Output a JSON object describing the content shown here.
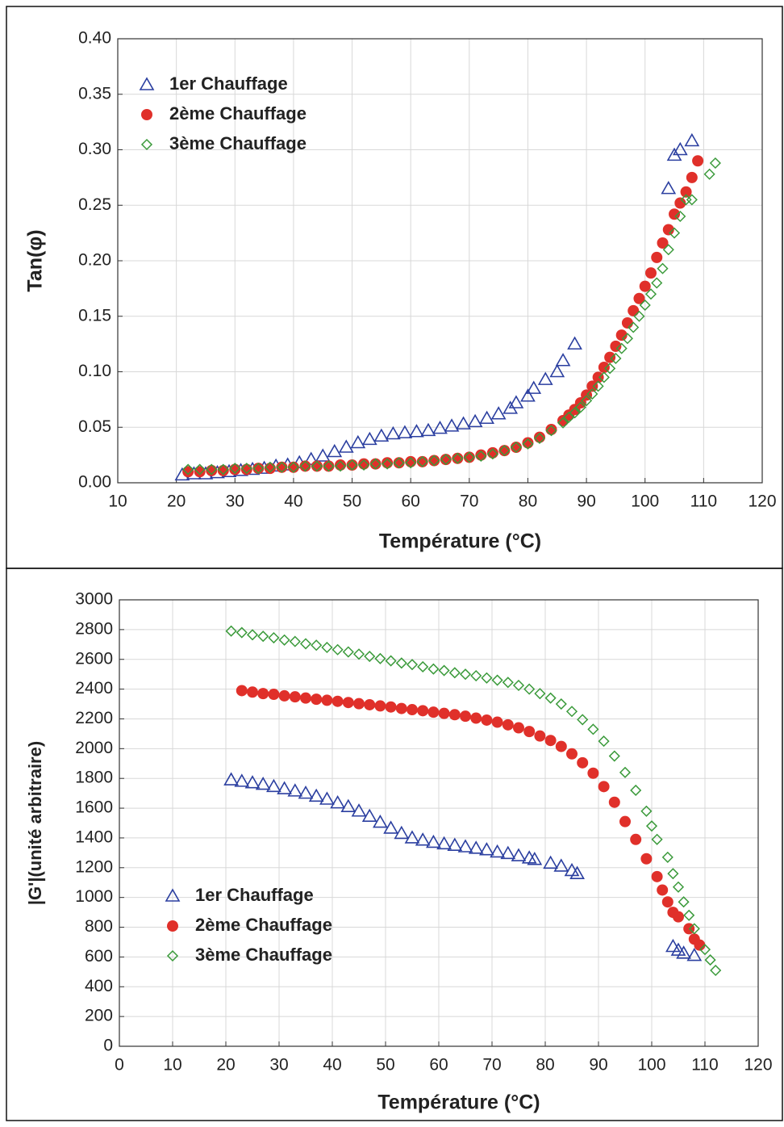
{
  "chart_data": [
    {
      "type": "scatter",
      "xlabel": "Température (°C)",
      "ylabel": "Tan(φ)",
      "xlim": [
        10,
        120
      ],
      "xticks": [
        10,
        20,
        30,
        40,
        50,
        60,
        70,
        80,
        90,
        100,
        110,
        120
      ],
      "ylim": [
        0,
        0.4
      ],
      "yticks": [
        {
          "value": 0,
          "label": "0.00"
        },
        {
          "value": 0.05,
          "label": "0.05"
        },
        {
          "value": 0.1,
          "label": "0.10"
        },
        {
          "value": 0.15,
          "label": "0.15"
        },
        {
          "value": 0.2,
          "label": "0.20"
        },
        {
          "value": 0.25,
          "label": "0.25"
        },
        {
          "value": 0.3,
          "label": "0.30"
        },
        {
          "value": 0.35,
          "label": "0.35"
        },
        {
          "value": 0.4,
          "label": "0.40"
        }
      ],
      "grid": true,
      "legend": "upper left",
      "series": [
        {
          "name": "1er Chauffage",
          "color": "#2b3fa0",
          "marker": "triangle",
          "x": [
            21,
            23,
            25,
            27,
            29,
            31,
            33,
            35,
            37,
            39,
            41,
            43,
            45,
            47,
            49,
            51,
            53,
            55,
            57,
            59,
            61,
            63,
            65,
            67,
            69,
            71,
            73,
            75,
            77,
            78,
            80,
            81,
            83,
            85,
            86,
            88,
            104,
            105,
            106,
            108
          ],
          "values": [
            0.007,
            0.008,
            0.008,
            0.009,
            0.01,
            0.011,
            0.012,
            0.013,
            0.015,
            0.016,
            0.018,
            0.021,
            0.024,
            0.028,
            0.032,
            0.036,
            0.039,
            0.042,
            0.044,
            0.045,
            0.046,
            0.047,
            0.049,
            0.051,
            0.053,
            0.055,
            0.058,
            0.062,
            0.067,
            0.072,
            0.078,
            0.085,
            0.093,
            0.1,
            0.11,
            0.125,
            0.265,
            0.295,
            0.3,
            0.308
          ]
        },
        {
          "name": "2ème Chauffage",
          "color": "#e0302a",
          "marker": "circle",
          "x": [
            22,
            24,
            26,
            28,
            30,
            32,
            34,
            36,
            38,
            40,
            42,
            44,
            46,
            48,
            50,
            52,
            54,
            56,
            58,
            60,
            62,
            64,
            66,
            68,
            70,
            72,
            74,
            76,
            78,
            80,
            82,
            84,
            86,
            87,
            88,
            89,
            90,
            91,
            92,
            93,
            94,
            95,
            96,
            97,
            98,
            99,
            100,
            101,
            102,
            103,
            104,
            105,
            106,
            107,
            108,
            109
          ],
          "values": [
            0.01,
            0.01,
            0.011,
            0.011,
            0.012,
            0.012,
            0.013,
            0.013,
            0.014,
            0.014,
            0.015,
            0.015,
            0.015,
            0.016,
            0.016,
            0.017,
            0.017,
            0.018,
            0.018,
            0.019,
            0.019,
            0.02,
            0.021,
            0.022,
            0.023,
            0.025,
            0.027,
            0.029,
            0.032,
            0.036,
            0.041,
            0.048,
            0.056,
            0.061,
            0.066,
            0.072,
            0.079,
            0.087,
            0.095,
            0.104,
            0.113,
            0.123,
            0.133,
            0.144,
            0.155,
            0.166,
            0.177,
            0.189,
            0.203,
            0.216,
            0.228,
            0.242,
            0.252,
            0.262,
            0.275,
            0.29
          ]
        },
        {
          "name": "3ème Chauffage",
          "color": "#3a9a3a",
          "marker": "diamond",
          "x": [
            22,
            24,
            26,
            28,
            30,
            32,
            34,
            36,
            38,
            40,
            42,
            44,
            46,
            48,
            50,
            52,
            54,
            56,
            58,
            60,
            62,
            64,
            66,
            68,
            70,
            72,
            74,
            76,
            78,
            80,
            82,
            84,
            86,
            87,
            88,
            89,
            90,
            91,
            92,
            93,
            94,
            95,
            96,
            97,
            98,
            99,
            100,
            101,
            102,
            103,
            104,
            105,
            106,
            107,
            108,
            111,
            112
          ],
          "values": [
            0.012,
            0.012,
            0.012,
            0.012,
            0.013,
            0.013,
            0.013,
            0.014,
            0.014,
            0.014,
            0.015,
            0.015,
            0.015,
            0.015,
            0.016,
            0.016,
            0.017,
            0.017,
            0.018,
            0.018,
            0.019,
            0.02,
            0.021,
            0.022,
            0.023,
            0.024,
            0.026,
            0.029,
            0.032,
            0.035,
            0.04,
            0.047,
            0.054,
            0.059,
            0.063,
            0.068,
            0.074,
            0.08,
            0.087,
            0.095,
            0.103,
            0.112,
            0.121,
            0.13,
            0.14,
            0.15,
            0.16,
            0.17,
            0.18,
            0.193,
            0.21,
            0.225,
            0.24,
            0.255,
            0.255,
            0.278,
            0.288
          ]
        }
      ]
    },
    {
      "type": "scatter",
      "xlabel": "Température (°C)",
      "ylabel": "|G'|(unité arbitraire)",
      "xlim": [
        0,
        120
      ],
      "xticks": [
        0,
        10,
        20,
        30,
        40,
        50,
        60,
        70,
        80,
        90,
        100,
        110,
        120
      ],
      "ylim": [
        0,
        3000
      ],
      "yticks": [
        0,
        200,
        400,
        600,
        800,
        1000,
        1200,
        1400,
        1600,
        1800,
        2000,
        2200,
        2400,
        2600,
        2800,
        3000
      ],
      "grid": true,
      "legend": "lower left",
      "series": [
        {
          "name": "1er Chauffage",
          "color": "#2b3fa0",
          "marker": "triangle",
          "x": [
            21,
            23,
            25,
            27,
            29,
            31,
            33,
            35,
            37,
            39,
            41,
            43,
            45,
            47,
            49,
            51,
            53,
            55,
            57,
            59,
            61,
            63,
            65,
            67,
            69,
            71,
            73,
            75,
            77,
            78,
            81,
            83,
            85,
            86,
            104,
            105,
            106,
            108
          ],
          "values": [
            1790,
            1780,
            1770,
            1760,
            1745,
            1730,
            1715,
            1700,
            1680,
            1660,
            1635,
            1610,
            1580,
            1545,
            1505,
            1465,
            1430,
            1400,
            1385,
            1370,
            1360,
            1350,
            1340,
            1330,
            1320,
            1305,
            1295,
            1280,
            1265,
            1255,
            1230,
            1210,
            1180,
            1160,
            670,
            645,
            625,
            610
          ]
        },
        {
          "name": "2ème Chauffage",
          "color": "#e0302a",
          "marker": "circle",
          "x": [
            23,
            25,
            27,
            29,
            31,
            33,
            35,
            37,
            39,
            41,
            43,
            45,
            47,
            49,
            51,
            53,
            55,
            57,
            59,
            61,
            63,
            65,
            67,
            69,
            71,
            73,
            75,
            77,
            79,
            81,
            83,
            85,
            87,
            89,
            91,
            93,
            95,
            97,
            99,
            101,
            102,
            103,
            104,
            105,
            107,
            108,
            109
          ],
          "values": [
            2390,
            2380,
            2370,
            2365,
            2355,
            2348,
            2340,
            2332,
            2325,
            2318,
            2310,
            2302,
            2295,
            2287,
            2280,
            2270,
            2262,
            2255,
            2245,
            2237,
            2228,
            2218,
            2205,
            2192,
            2178,
            2160,
            2140,
            2115,
            2085,
            2055,
            2015,
            1965,
            1905,
            1835,
            1745,
            1640,
            1510,
            1390,
            1260,
            1140,
            1050,
            970,
            900,
            870,
            790,
            720,
            680
          ]
        },
        {
          "name": "3ème Chauffage",
          "color": "#3a9a3a",
          "marker": "diamond",
          "x": [
            21,
            23,
            25,
            27,
            29,
            31,
            33,
            35,
            37,
            39,
            41,
            43,
            45,
            47,
            49,
            51,
            53,
            55,
            57,
            59,
            61,
            63,
            65,
            67,
            69,
            71,
            73,
            75,
            77,
            79,
            81,
            83,
            85,
            87,
            89,
            91,
            93,
            95,
            97,
            99,
            100,
            101,
            103,
            104,
            105,
            106,
            107,
            108,
            110,
            111,
            112
          ],
          "values": [
            2790,
            2780,
            2765,
            2755,
            2745,
            2730,
            2720,
            2705,
            2695,
            2680,
            2665,
            2650,
            2635,
            2620,
            2605,
            2590,
            2575,
            2565,
            2550,
            2535,
            2525,
            2510,
            2500,
            2490,
            2475,
            2460,
            2445,
            2425,
            2400,
            2370,
            2340,
            2300,
            2250,
            2195,
            2130,
            2050,
            1950,
            1840,
            1720,
            1580,
            1480,
            1390,
            1270,
            1160,
            1070,
            970,
            880,
            790,
            650,
            580,
            510
          ]
        }
      ]
    }
  ]
}
